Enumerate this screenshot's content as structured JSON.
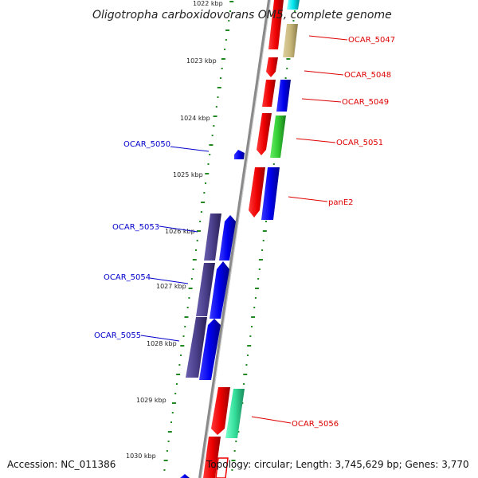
{
  "title": "Oligotropha carboxidovorans OM5, complete genome",
  "footer": {
    "accession": "Accession: NC_011386",
    "topology": "Topology: circular; Length: 3,745,629 bp; Genes: 3,770"
  },
  "scale_labels": [
    "1022 kbp",
    "1023 kbp",
    "1024 kbp",
    "1025 kbp",
    "1026 kbp",
    "1027 kbp",
    "1028 kbp",
    "1029 kbp",
    "1030 kbp"
  ],
  "genes_forward": [
    {
      "label": "OCAR_5047",
      "cog_color": "#c8b87a"
    },
    {
      "label": "OCAR_5048",
      "cog_color": "#0000ee"
    },
    {
      "label": "OCAR_5049",
      "cog_color": "#0000ee"
    },
    {
      "label": "OCAR_5051",
      "cog_color": "#33cc33"
    },
    {
      "label": "panE2",
      "cog_color": "#0000ee"
    },
    {
      "label": "OCAR_5056",
      "cog_color": "#33dd99"
    }
  ],
  "genes_reverse": [
    {
      "label": "OCAR_5050",
      "cog_color": "#0000ee"
    },
    {
      "label": "OCAR_5053",
      "cog_color": "#0000ee"
    },
    {
      "label": "OCAR_5054",
      "cog_color": "#0000ee"
    },
    {
      "label": "OCAR_5055",
      "cog_color": "#0000ee"
    }
  ],
  "colors": {
    "forward_label": "#dd0000",
    "reverse_label": "#0000cc",
    "cds_forward": "#ee0000",
    "backbone": "#888888",
    "tick": "#228822",
    "operon_dark": "#4a3f8a",
    "cyan_gene": "#00e5ee"
  }
}
